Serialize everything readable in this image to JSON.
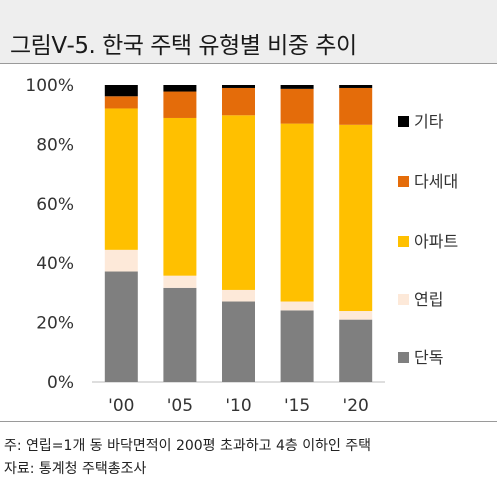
{
  "header": {
    "title": "그림Ⅴ-5. 한국 주택 유형별 비중 추이"
  },
  "chart_data": {
    "type": "bar",
    "stacked": true,
    "categories": [
      "'00",
      "'05",
      "'10",
      "'15",
      "'20"
    ],
    "series": [
      {
        "name": "단독",
        "color": "#7f7f7f",
        "values": [
          37.2,
          31.7,
          27.1,
          24.1,
          21.0
        ]
      },
      {
        "name": "연립",
        "color": "#fde9d9",
        "values": [
          7.3,
          4.1,
          3.9,
          3.0,
          2.9
        ]
      },
      {
        "name": "아파트",
        "color": "#ffc000",
        "values": [
          47.6,
          53.1,
          58.8,
          59.9,
          62.7
        ]
      },
      {
        "name": "다세대",
        "color": "#e46c0a",
        "values": [
          4.1,
          8.9,
          9.2,
          11.7,
          12.4
        ]
      },
      {
        "name": "기타",
        "color": "#000000",
        "values": [
          3.8,
          2.2,
          1.0,
          1.3,
          1.0
        ]
      }
    ],
    "legend_order": [
      "기타",
      "다세대",
      "아파트",
      "연립",
      "단독"
    ],
    "yticks": [
      "0%",
      "20%",
      "40%",
      "60%",
      "80%",
      "100%"
    ],
    "ylim": [
      0,
      100
    ],
    "grid": false,
    "legend_position": "right"
  },
  "footer": {
    "note": "주: 연립=1개 동 바닥면적이 200평 초과하고 4층 이하인 주택",
    "source": "자료: 통계청 주택총조사"
  }
}
